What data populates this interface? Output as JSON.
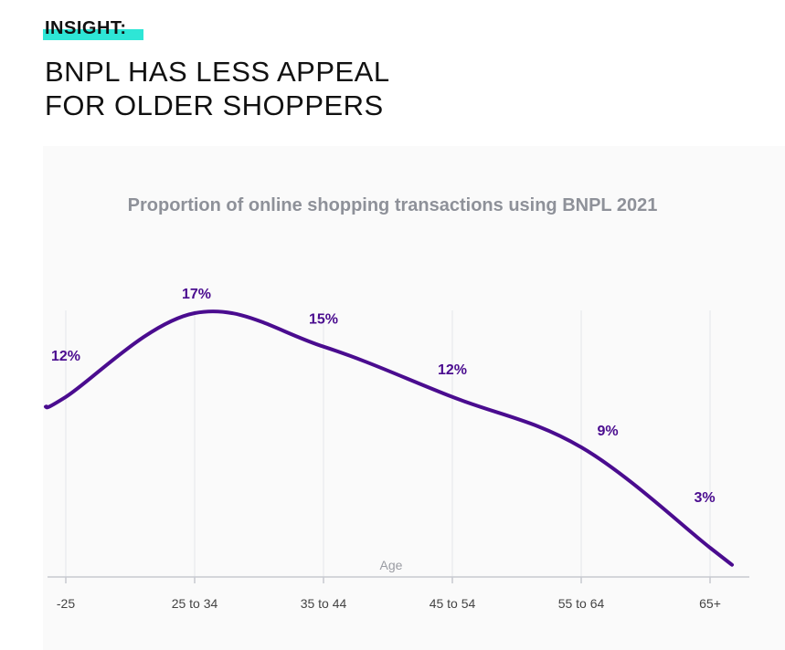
{
  "header": {
    "eyebrow": "INSIGHT:",
    "headline_line1": "BNPL HAS LESS APPEAL",
    "headline_line2": "FOR OLDER SHOPPERS"
  },
  "colors": {
    "line": "#4a0c8f",
    "label": "#4a0c8f",
    "highlight": "#2ee6d6",
    "axis": "#c7c9d0",
    "tick_text": "#444444",
    "axis_title": "#9a9ca3"
  },
  "chart_data": {
    "type": "line",
    "title": "Proportion of online shopping transactions using BNPL 2021",
    "xlabel": "Age",
    "ylabel": "",
    "categories": [
      "-25",
      "25 to 34",
      "35 to 44",
      "45 to 54",
      "55 to 64",
      "65+"
    ],
    "values": [
      12,
      17,
      15,
      12,
      9,
      3
    ],
    "data_labels": [
      "12%",
      "17%",
      "15%",
      "12%",
      "9%",
      "3%"
    ],
    "ylim": [
      0,
      20
    ]
  }
}
